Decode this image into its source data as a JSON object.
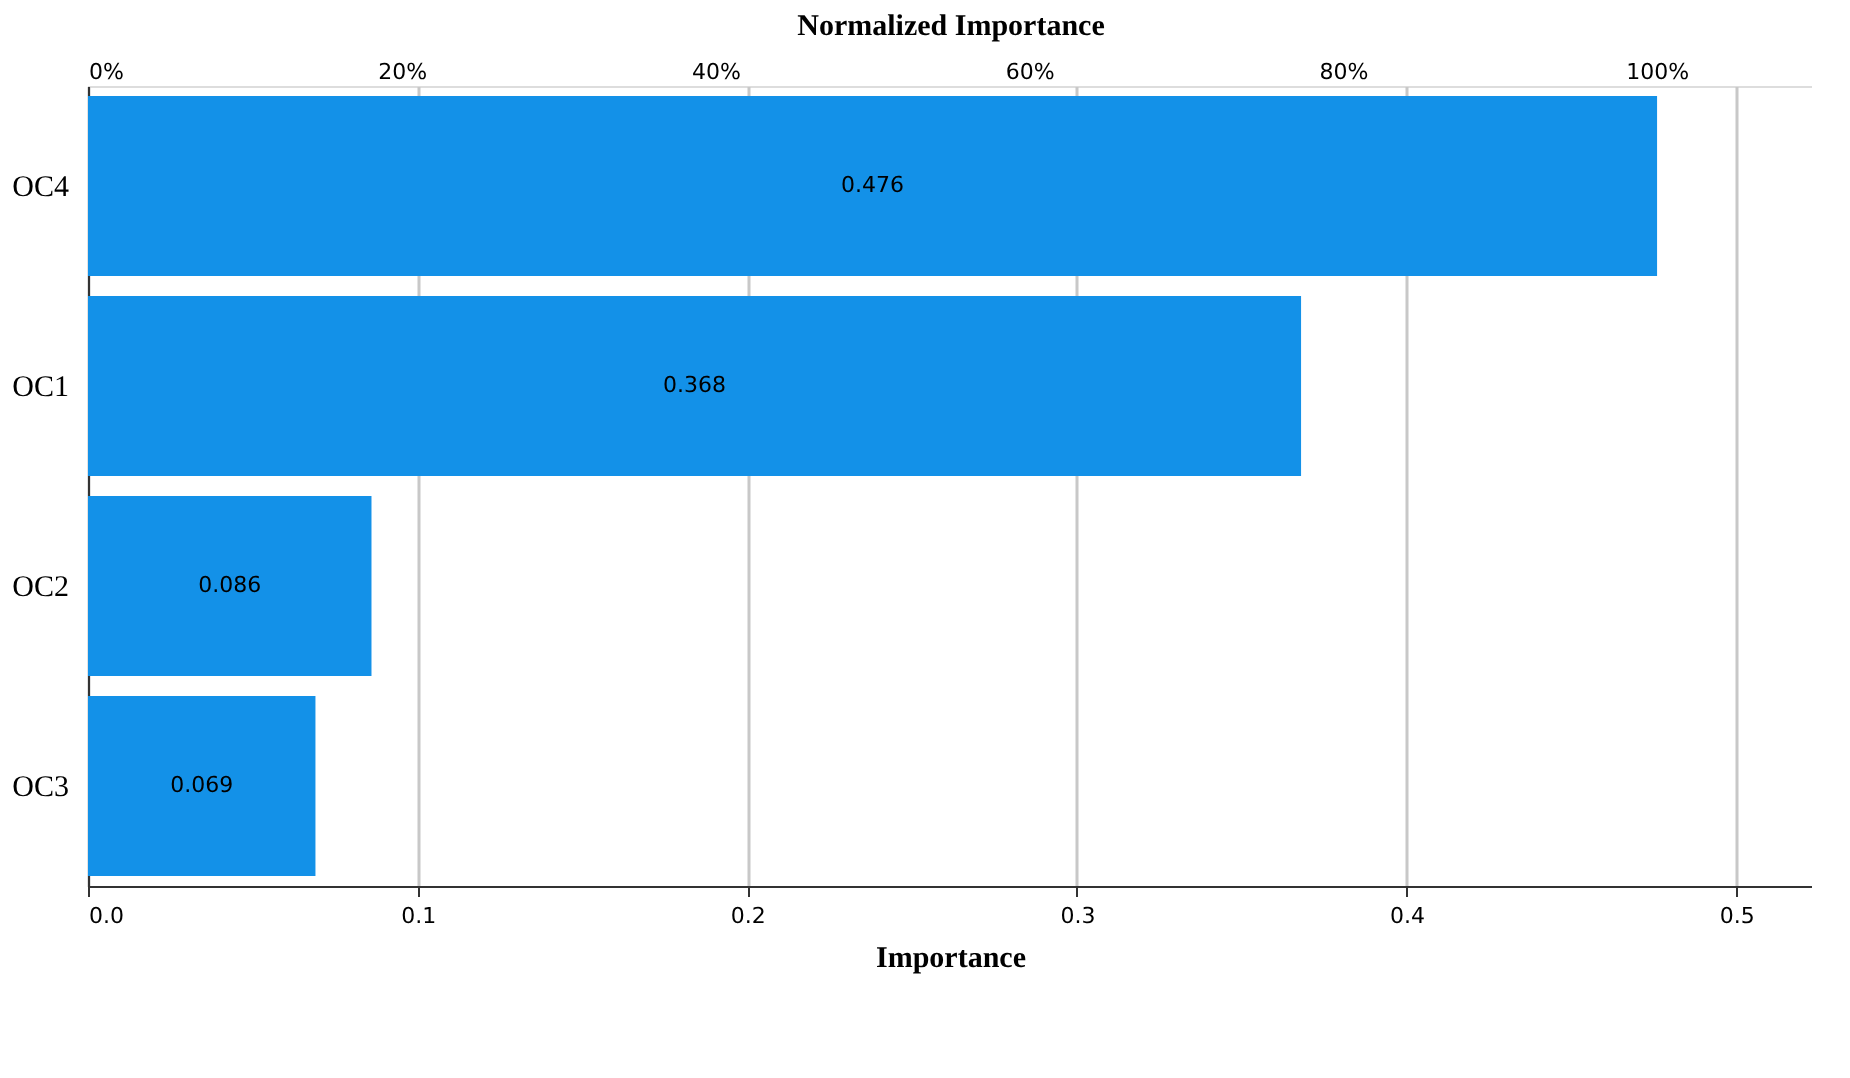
{
  "chart_data": {
    "type": "bar",
    "orientation": "horizontal",
    "xlabel": "Importance",
    "x2label": "Normalized Importance",
    "categories": [
      "OC4",
      "OC1",
      "OC2",
      "OC3"
    ],
    "values": [
      0.476,
      0.368,
      0.086,
      0.069
    ],
    "color": "#1391e8",
    "data_labels": true,
    "xlim": [
      0,
      0.523
    ],
    "xticks": [
      {
        "value": 0,
        "label": "0.0"
      },
      0.1,
      0.2,
      0.3,
      0.4,
      0.5
    ],
    "x2lim": [
      0,
      109.9
    ],
    "x2ticks": [
      {
        "value": 0,
        "label": "0%"
      },
      {
        "value": 20,
        "label": "20%"
      },
      {
        "value": 40,
        "label": "40%"
      },
      {
        "value": 60,
        "label": "60%"
      },
      {
        "value": 80,
        "label": "80%"
      },
      {
        "value": 100,
        "label": "100%"
      }
    ],
    "grid": "x"
  }
}
